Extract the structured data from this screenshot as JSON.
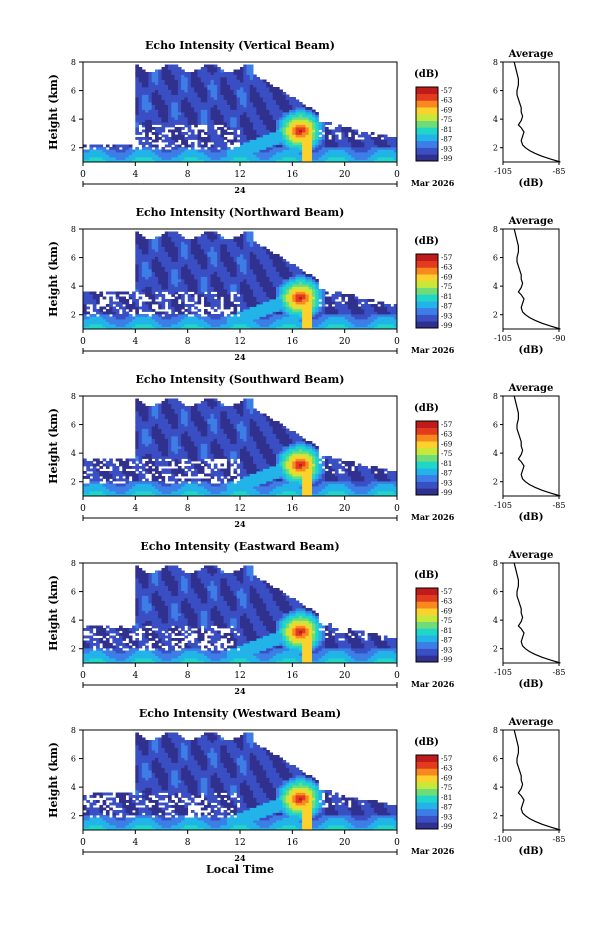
{
  "figure": {
    "common_xlabel": "Local Time",
    "date_label": "Mar 2026",
    "date_day_label": "24",
    "colorbar_unit": "(dB)",
    "colorbar_ticks": [
      "-57",
      "-63",
      "-69",
      "-75",
      "-81",
      "-87",
      "-93",
      "-99"
    ],
    "colormap": [
      "#30318f",
      "#3a4fc4",
      "#3c7ee6",
      "#22b4e8",
      "#20d6c8",
      "#6fdc7a",
      "#c7e83a",
      "#fbd12e",
      "#f7891f",
      "#e33b1e",
      "#c01a1a"
    ],
    "background_color": "#ffffff"
  },
  "chart_data": [
    {
      "type": "heatmap",
      "title": "Echo Intensity (Vertical Beam)",
      "xlabel": "",
      "ylabel": "Height (km)",
      "xlim": [
        0,
        24
      ],
      "xticks": [
        "0",
        "4",
        "8",
        "12",
        "16",
        "20",
        "0"
      ],
      "ylim": [
        1,
        8
      ],
      "yticks": [
        "2",
        "4",
        "6",
        "8"
      ],
      "zrange": [
        -99,
        -57
      ],
      "profile": {
        "title": "Average",
        "xlabel": "(dB)",
        "xlim": [
          -105,
          -85
        ],
        "xticks": [
          "-105",
          "-85"
        ],
        "ylim": [
          1,
          8
        ],
        "yticks": [
          "2",
          "4",
          "6",
          "8"
        ],
        "x": [
          -84.5,
          -88,
          -91,
          -93.5,
          -95.5,
          -97,
          -98,
          -98.5,
          -98,
          -97.5,
          -98.5,
          -99.5,
          -98.5,
          -98,
          -98.5,
          -98.5,
          -99,
          -99.5,
          -100,
          -100,
          -99.5,
          -99.5,
          -100,
          -100.5,
          -101
        ],
        "y": [
          1.0,
          1.2,
          1.4,
          1.6,
          1.8,
          2.0,
          2.2,
          2.5,
          2.8,
          3.1,
          3.4,
          3.6,
          3.9,
          4.2,
          4.5,
          4.8,
          5.1,
          5.4,
          5.7,
          6.0,
          6.4,
          6.8,
          7.2,
          7.6,
          8.0
        ]
      }
    },
    {
      "type": "heatmap",
      "title": "Echo Intensity (Northward Beam)",
      "xlabel": "",
      "ylabel": "Height (km)",
      "xlim": [
        0,
        24
      ],
      "xticks": [
        "0",
        "4",
        "8",
        "12",
        "16",
        "20",
        "0"
      ],
      "ylim": [
        1,
        8
      ],
      "yticks": [
        "2",
        "4",
        "6",
        "8"
      ],
      "zrange": [
        -99,
        -57
      ],
      "profile": {
        "title": "Average",
        "xlabel": "(dB)",
        "xlim": [
          -105,
          -85
        ],
        "xticks": [
          "-105",
          "-90"
        ],
        "ylim": [
          1,
          8
        ],
        "yticks": [
          "2",
          "4",
          "6",
          "8"
        ],
        "x": [
          -84.5,
          -88,
          -91,
          -93.5,
          -95.5,
          -97,
          -98,
          -98.5,
          -98,
          -97.5,
          -98.5,
          -99.5,
          -98.5,
          -98,
          -98.5,
          -98.5,
          -99,
          -99.5,
          -100,
          -100,
          -99.5,
          -99.5,
          -100,
          -100.5,
          -101
        ],
        "y": [
          1.0,
          1.2,
          1.4,
          1.6,
          1.8,
          2.0,
          2.2,
          2.5,
          2.8,
          3.1,
          3.4,
          3.6,
          3.9,
          4.2,
          4.5,
          4.8,
          5.1,
          5.4,
          5.7,
          6.0,
          6.4,
          6.8,
          7.2,
          7.6,
          8.0
        ]
      }
    },
    {
      "type": "heatmap",
      "title": "Echo Intensity (Southward Beam)",
      "xlabel": "",
      "ylabel": "Height (km)",
      "xlim": [
        0,
        24
      ],
      "xticks": [
        "0",
        "4",
        "8",
        "12",
        "16",
        "20",
        "0"
      ],
      "ylim": [
        1,
        8
      ],
      "yticks": [
        "2",
        "4",
        "6",
        "8"
      ],
      "zrange": [
        -99,
        -57
      ],
      "profile": {
        "title": "Average",
        "xlabel": "(dB)",
        "xlim": [
          -105,
          -85
        ],
        "xticks": [
          "-105",
          "-85"
        ],
        "ylim": [
          1,
          8
        ],
        "yticks": [
          "2",
          "4",
          "6",
          "8"
        ],
        "x": [
          -84.5,
          -88,
          -91,
          -93.5,
          -95.5,
          -97,
          -98,
          -98.5,
          -98,
          -97.5,
          -98.5,
          -99.5,
          -98.5,
          -98,
          -98.5,
          -98.5,
          -99,
          -99.5,
          -100,
          -100,
          -99.5,
          -99.5,
          -100,
          -100.5,
          -101
        ],
        "y": [
          1.0,
          1.2,
          1.4,
          1.6,
          1.8,
          2.0,
          2.2,
          2.5,
          2.8,
          3.1,
          3.4,
          3.6,
          3.9,
          4.2,
          4.5,
          4.8,
          5.1,
          5.4,
          5.7,
          6.0,
          6.4,
          6.8,
          7.2,
          7.6,
          8.0
        ]
      }
    },
    {
      "type": "heatmap",
      "title": "Echo Intensity (Eastward Beam)",
      "xlabel": "",
      "ylabel": "Height (km)",
      "xlim": [
        0,
        24
      ],
      "xticks": [
        "0",
        "4",
        "8",
        "12",
        "16",
        "20",
        "0"
      ],
      "ylim": [
        1,
        8
      ],
      "yticks": [
        "2",
        "4",
        "6",
        "8"
      ],
      "zrange": [
        -99,
        -57
      ],
      "profile": {
        "title": "Average",
        "xlabel": "(dB)",
        "xlim": [
          -105,
          -85
        ],
        "xticks": [
          "-105",
          "-85"
        ],
        "ylim": [
          1,
          8
        ],
        "yticks": [
          "2",
          "4",
          "6",
          "8"
        ],
        "x": [
          -84.5,
          -88,
          -91,
          -93.5,
          -95.5,
          -97,
          -98,
          -98.5,
          -98,
          -97.5,
          -98.5,
          -99.5,
          -98.5,
          -98,
          -98.5,
          -98.5,
          -99,
          -99.5,
          -100,
          -100,
          -99.5,
          -99.5,
          -100,
          -100.5,
          -101
        ],
        "y": [
          1.0,
          1.2,
          1.4,
          1.6,
          1.8,
          2.0,
          2.2,
          2.5,
          2.8,
          3.1,
          3.4,
          3.6,
          3.9,
          4.2,
          4.5,
          4.8,
          5.1,
          5.4,
          5.7,
          6.0,
          6.4,
          6.8,
          7.2,
          7.6,
          8.0
        ]
      }
    },
    {
      "type": "heatmap",
      "title": "Echo Intensity (Westward Beam)",
      "xlabel": "Local Time",
      "ylabel": "Height (km)",
      "xlim": [
        0,
        24
      ],
      "xticks": [
        "0",
        "4",
        "8",
        "12",
        "16",
        "20",
        "0"
      ],
      "ylim": [
        1,
        8
      ],
      "yticks": [
        "2",
        "4",
        "6",
        "8"
      ],
      "zrange": [
        -99,
        -57
      ],
      "profile": {
        "title": "Average",
        "xlabel": "(dB)",
        "xlim": [
          -105,
          -85
        ],
        "xticks": [
          "-100",
          "-85"
        ],
        "ylim": [
          1,
          8
        ],
        "yticks": [
          "2",
          "4",
          "6",
          "8"
        ],
        "x": [
          -84.5,
          -88,
          -91,
          -93.5,
          -95.5,
          -97,
          -98,
          -98.5,
          -98,
          -97.5,
          -98.5,
          -99.5,
          -98.5,
          -98,
          -98.5,
          -98.5,
          -99,
          -99.5,
          -100,
          -100,
          -99.5,
          -99.5,
          -100,
          -100.5,
          -101
        ],
        "y": [
          1.0,
          1.2,
          1.4,
          1.6,
          1.8,
          2.0,
          2.2,
          2.5,
          2.8,
          3.1,
          3.4,
          3.6,
          3.9,
          4.2,
          4.5,
          4.8,
          5.1,
          5.4,
          5.7,
          6.0,
          6.4,
          6.8,
          7.2,
          7.6,
          8.0
        ]
      }
    }
  ]
}
